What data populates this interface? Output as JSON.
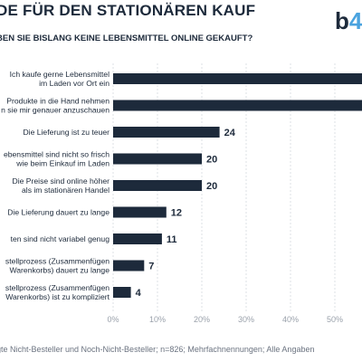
{
  "title": "DE FÜR DEN STATIONÄREN KAUF",
  "subtitle": "BEN SIE BISLANG KEINE LEBENSMITTEL ONLINE GEKAUFT?",
  "logo": {
    "text": "b4",
    "accent_char": "4"
  },
  "footer": "gte Nicht-Besteller und Noch-Nicht-Besteller; n=826; Mehrfachnennungen; Alle Angaben",
  "chart_data": {
    "type": "bar",
    "orientation": "horizontal",
    "categories": [
      [
        "Ich kaufe gerne Lebensmittel",
        "im Laden vor Ort ein"
      ],
      [
        "Produkte in die Hand nehmen",
        "n sie mir genauer anzuschauen"
      ],
      [
        "Die Lieferung ist zu teuer"
      ],
      [
        "ebensmittel sind nicht so frisch",
        "wie beim Einkauf im Laden"
      ],
      [
        "Die Preise sind online höher",
        "als im stationären Handel"
      ],
      [
        "Die Lieferung dauert zu lange"
      ],
      [
        "ten sind nicht variabel genug"
      ],
      [
        "stellprozess (Zusammenfügen",
        "Warenkorbs) dauert zu lange"
      ],
      [
        "stellprozess (Zusammenfügen",
        "Warenkorbs) ist zu kompliziert"
      ]
    ],
    "values": [
      null,
      null,
      24,
      20,
      20,
      12,
      11,
      7,
      4
    ],
    "value_labels": [
      "",
      "",
      "24",
      "20",
      "20",
      "12",
      "11",
      "7",
      "4"
    ],
    "x_ticks": [
      "0%",
      "10%",
      "20%",
      "30%",
      "40%",
      "50%"
    ],
    "xlim": [
      0,
      55
    ],
    "grid": true,
    "bar_color": "#1d2a3b"
  }
}
